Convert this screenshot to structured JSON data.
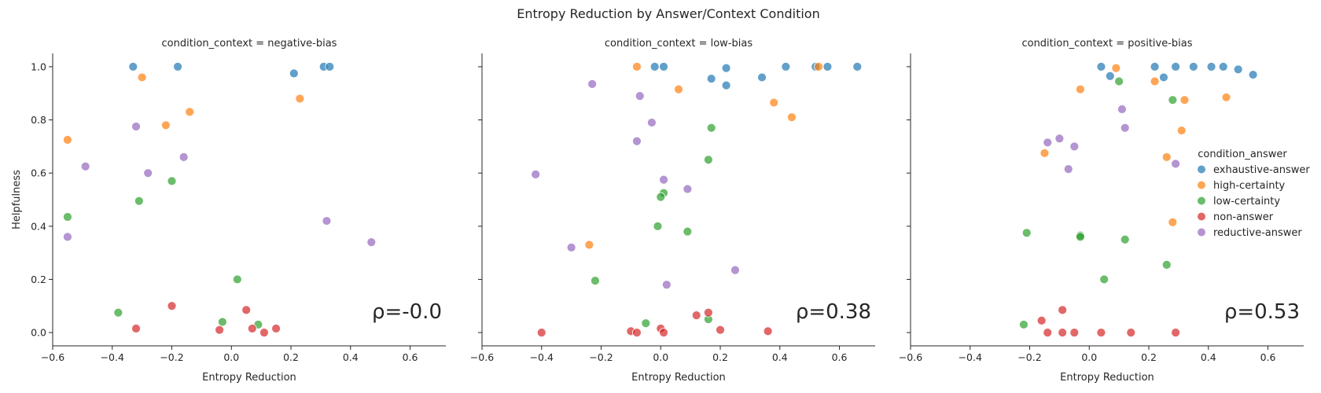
{
  "title": "Entropy Reduction by Answer/Context Condition",
  "legend": {
    "title": "condition_answer",
    "entries": [
      {
        "name": "exhaustive-answer",
        "color": "#1f77b4"
      },
      {
        "name": "high-certainty",
        "color": "#ff7f0e"
      },
      {
        "name": "low-certainty",
        "color": "#2ca02c"
      },
      {
        "name": "non-answer",
        "color": "#d62728"
      },
      {
        "name": "reductive-answer",
        "color": "#9467bd"
      }
    ]
  },
  "chart_data": [
    {
      "type": "scatter",
      "title": "condition_context = negative-bias",
      "xlabel": "Entropy Reduction",
      "ylabel": "Helpfulness",
      "xlim": [
        -0.6,
        0.72
      ],
      "ylim": [
        -0.05,
        1.05
      ],
      "xticks": [
        "−0.6",
        "−0.4",
        "−0.2",
        "0.0",
        "0.2",
        "0.4",
        "0.6"
      ],
      "yticks": [
        "0.0",
        "0.2",
        "0.4",
        "0.6",
        "0.8",
        "1.0"
      ],
      "annotation": "ρ=-0.0",
      "series": [
        {
          "name": "exhaustive-answer",
          "points": [
            [
              -0.33,
              1.0
            ],
            [
              -0.18,
              1.0
            ],
            [
              0.21,
              0.975
            ],
            [
              0.31,
              1.0
            ],
            [
              0.33,
              1.0
            ]
          ]
        },
        {
          "name": "high-certainty",
          "points": [
            [
              -0.55,
              0.725
            ],
            [
              -0.3,
              0.96
            ],
            [
              -0.22,
              0.78
            ],
            [
              -0.14,
              0.83
            ],
            [
              0.23,
              0.88
            ]
          ]
        },
        {
          "name": "low-certainty",
          "points": [
            [
              -0.55,
              0.435
            ],
            [
              -0.31,
              0.495
            ],
            [
              -0.2,
              0.57
            ],
            [
              -0.38,
              0.075
            ],
            [
              -0.03,
              0.04
            ],
            [
              0.02,
              0.2
            ],
            [
              0.09,
              0.03
            ]
          ]
        },
        {
          "name": "non-answer",
          "points": [
            [
              -0.32,
              0.015
            ],
            [
              -0.2,
              0.1
            ],
            [
              -0.04,
              0.01
            ],
            [
              0.05,
              0.085
            ],
            [
              0.07,
              0.015
            ],
            [
              0.11,
              0.0
            ],
            [
              0.15,
              0.015
            ]
          ]
        },
        {
          "name": "reductive-answer",
          "points": [
            [
              -0.55,
              0.36
            ],
            [
              -0.49,
              0.625
            ],
            [
              -0.32,
              0.775
            ],
            [
              -0.28,
              0.6
            ],
            [
              -0.16,
              0.66
            ],
            [
              0.32,
              0.42
            ],
            [
              0.47,
              0.34
            ]
          ]
        }
      ]
    },
    {
      "type": "scatter",
      "title": "condition_context = low-bias",
      "xlabel": "Entropy Reduction",
      "ylabel": "",
      "xlim": [
        -0.6,
        0.72
      ],
      "ylim": [
        -0.05,
        1.05
      ],
      "xticks": [
        "−0.6",
        "−0.4",
        "−0.2",
        "0.0",
        "0.2",
        "0.4",
        "0.6"
      ],
      "yticks": [],
      "annotation": "ρ=0.38",
      "series": [
        {
          "name": "exhaustive-answer",
          "points": [
            [
              -0.02,
              1.0
            ],
            [
              0.01,
              1.0
            ],
            [
              0.17,
              0.955
            ],
            [
              0.22,
              0.995
            ],
            [
              0.22,
              0.93
            ],
            [
              0.34,
              0.96
            ],
            [
              0.42,
              1.0
            ],
            [
              0.52,
              1.0
            ],
            [
              0.56,
              1.0
            ],
            [
              0.66,
              1.0
            ]
          ]
        },
        {
          "name": "high-certainty",
          "points": [
            [
              -0.08,
              1.0
            ],
            [
              0.06,
              0.915
            ],
            [
              0.38,
              0.865
            ],
            [
              0.44,
              0.81
            ],
            [
              0.53,
              1.0
            ],
            [
              -0.24,
              0.33
            ]
          ]
        },
        {
          "name": "low-certainty",
          "points": [
            [
              0.17,
              0.77
            ],
            [
              0.16,
              0.65
            ],
            [
              0.01,
              0.525
            ],
            [
              0.0,
              0.51
            ],
            [
              -0.01,
              0.4
            ],
            [
              0.09,
              0.38
            ],
            [
              -0.22,
              0.195
            ],
            [
              -0.05,
              0.035
            ],
            [
              0.16,
              0.05
            ]
          ]
        },
        {
          "name": "non-answer",
          "points": [
            [
              -0.4,
              0.0
            ],
            [
              -0.1,
              0.005
            ],
            [
              -0.08,
              0.0
            ],
            [
              0.0,
              0.015
            ],
            [
              0.01,
              0.0
            ],
            [
              0.12,
              0.065
            ],
            [
              0.16,
              0.075
            ],
            [
              0.2,
              0.01
            ],
            [
              0.36,
              0.005
            ]
          ]
        },
        {
          "name": "reductive-answer",
          "points": [
            [
              -0.23,
              0.935
            ],
            [
              -0.07,
              0.89
            ],
            [
              -0.03,
              0.79
            ],
            [
              -0.08,
              0.72
            ],
            [
              -0.42,
              0.595
            ],
            [
              0.01,
              0.575
            ],
            [
              0.09,
              0.54
            ],
            [
              -0.3,
              0.32
            ],
            [
              0.25,
              0.235
            ],
            [
              0.02,
              0.18
            ]
          ]
        }
      ]
    },
    {
      "type": "scatter",
      "title": "condition_context = positive-bias",
      "xlabel": "Entropy Reduction",
      "ylabel": "",
      "xlim": [
        -0.6,
        0.72
      ],
      "ylim": [
        -0.05,
        1.05
      ],
      "xticks": [
        "−0.6",
        "−0.4",
        "−0.2",
        "0.0",
        "0.2",
        "0.4",
        "0.6"
      ],
      "yticks": [],
      "annotation": "ρ=0.53",
      "series": [
        {
          "name": "exhaustive-answer",
          "points": [
            [
              0.04,
              1.0
            ],
            [
              0.07,
              0.965
            ],
            [
              0.22,
              1.0
            ],
            [
              0.25,
              0.96
            ],
            [
              0.29,
              1.0
            ],
            [
              0.35,
              1.0
            ],
            [
              0.41,
              1.0
            ],
            [
              0.45,
              1.0
            ],
            [
              0.5,
              0.99
            ],
            [
              0.55,
              0.97
            ]
          ]
        },
        {
          "name": "high-certainty",
          "points": [
            [
              0.09,
              0.995
            ],
            [
              -0.03,
              0.915
            ],
            [
              0.22,
              0.945
            ],
            [
              0.32,
              0.875
            ],
            [
              0.46,
              0.885
            ],
            [
              0.31,
              0.76
            ],
            [
              -0.15,
              0.675
            ],
            [
              0.26,
              0.66
            ],
            [
              0.28,
              0.415
            ]
          ]
        },
        {
          "name": "low-certainty",
          "points": [
            [
              0.1,
              0.945
            ],
            [
              0.28,
              0.875
            ],
            [
              -0.21,
              0.375
            ],
            [
              -0.03,
              0.365
            ],
            [
              -0.03,
              0.36
            ],
            [
              0.12,
              0.35
            ],
            [
              0.05,
              0.2
            ],
            [
              0.26,
              0.255
            ],
            [
              -0.22,
              0.03
            ]
          ]
        },
        {
          "name": "non-answer",
          "points": [
            [
              -0.16,
              0.045
            ],
            [
              -0.09,
              0.085
            ],
            [
              -0.14,
              0.0
            ],
            [
              -0.09,
              0.0
            ],
            [
              -0.05,
              0.0
            ],
            [
              0.04,
              0.0
            ],
            [
              0.14,
              0.0
            ],
            [
              0.29,
              0.0
            ]
          ]
        },
        {
          "name": "reductive-answer",
          "points": [
            [
              0.11,
              0.84
            ],
            [
              0.12,
              0.77
            ],
            [
              -0.14,
              0.715
            ],
            [
              -0.1,
              0.73
            ],
            [
              -0.05,
              0.7
            ],
            [
              -0.07,
              0.615
            ],
            [
              0.29,
              0.635
            ]
          ]
        }
      ]
    }
  ]
}
